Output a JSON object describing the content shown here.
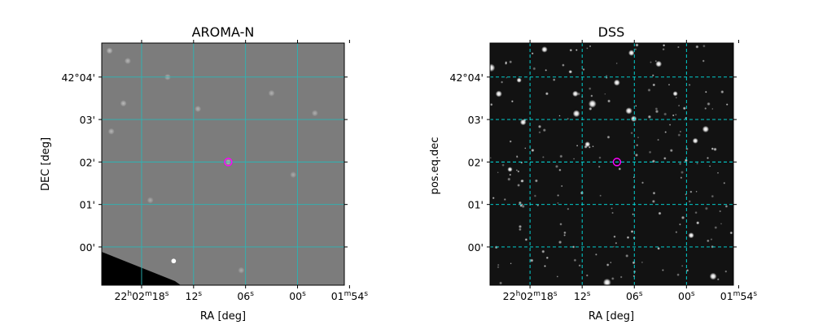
{
  "figure": {
    "background": "#ffffff",
    "grid_color": "#2bb5b5",
    "grid_color_right": "#00e5e5",
    "marker_color": "#ff00ff"
  },
  "chart_data": [
    {
      "type": "image",
      "title": "AROMA-N",
      "xlabel": "RA [deg]",
      "ylabel": "DEC [deg]",
      "grid": true,
      "grid_style": "solid",
      "x_ticks": [
        {
          "ra_sec": 18,
          "label_prefix": "22",
          "label_mid": "02",
          "label_sec": "18",
          "full": true
        },
        {
          "ra_sec": 12,
          "label_sec": "12",
          "full": false
        },
        {
          "ra_sec": 6,
          "label_sec": "06",
          "full": false
        },
        {
          "ra_sec": 0,
          "label_sec": "00",
          "full": false
        },
        {
          "ra_sec": -6,
          "label_mid": "01",
          "label_sec": "54",
          "minute_only": true
        }
      ],
      "y_ticks": [
        {
          "dec_arcmin": 4,
          "label": "42°04'"
        },
        {
          "dec_arcmin": 3,
          "label": "03'"
        },
        {
          "dec_arcmin": 2,
          "label": "02'"
        },
        {
          "dec_arcmin": 1,
          "label": "01'"
        },
        {
          "dec_arcmin": 0,
          "label": "00'"
        }
      ],
      "x_range_sec": [
        22.6,
        -5.4
      ],
      "y_range_arcmin": [
        -0.9,
        4.8
      ],
      "target": {
        "ra_sec": 8.0,
        "dec_arcmin": 2.0
      },
      "image_style": "gray",
      "blobs": [
        {
          "ra_sec": 21.7,
          "dec_arcmin": 4.62,
          "r": 0.1,
          "v": 0.9
        },
        {
          "ra_sec": 19.6,
          "dec_arcmin": 4.38,
          "r": 0.1,
          "v": 0.75
        },
        {
          "ra_sec": 20.1,
          "dec_arcmin": 3.38,
          "r": 0.11,
          "v": 0.8
        },
        {
          "ra_sec": 21.5,
          "dec_arcmin": 2.72,
          "r": 0.11,
          "v": 0.75
        },
        {
          "ra_sec": 15.0,
          "dec_arcmin": 4.0,
          "r": 0.09,
          "v": 0.7
        },
        {
          "ra_sec": 3.0,
          "dec_arcmin": 3.62,
          "r": 0.12,
          "v": 0.7
        },
        {
          "ra_sec": 11.5,
          "dec_arcmin": 3.25,
          "r": 0.09,
          "v": 0.7
        },
        {
          "ra_sec": -2.0,
          "dec_arcmin": 3.15,
          "r": 0.09,
          "v": 0.65
        },
        {
          "ra_sec": 8.0,
          "dec_arcmin": 2.0,
          "r": 0.07,
          "v": 0.85
        },
        {
          "ra_sec": 14.3,
          "dec_arcmin": -0.33,
          "r": 0.22,
          "v": 1.0
        },
        {
          "ra_sec": 6.5,
          "dec_arcmin": -0.55,
          "r": 0.08,
          "v": 0.6
        },
        {
          "ra_sec": 17.0,
          "dec_arcmin": 1.1,
          "r": 0.07,
          "v": 0.6
        },
        {
          "ra_sec": 0.5,
          "dec_arcmin": 1.7,
          "r": 0.07,
          "v": 0.6
        }
      ]
    },
    {
      "type": "image",
      "title": "DSS",
      "xlabel": "RA [deg]",
      "ylabel": "pos.eq.dec",
      "grid": true,
      "grid_style": "dashed",
      "x_ticks": [
        {
          "ra_sec": 18,
          "label_prefix": "22",
          "label_mid": "02",
          "label_sec": "18",
          "full": true
        },
        {
          "ra_sec": 12,
          "label_sec": "12",
          "full": false
        },
        {
          "ra_sec": 6,
          "label_sec": "06",
          "full": false
        },
        {
          "ra_sec": 0,
          "label_sec": "00",
          "full": false
        },
        {
          "ra_sec": -6,
          "label_mid": "01",
          "label_sec": "54",
          "minute_only": true
        }
      ],
      "y_ticks": [
        {
          "dec_arcmin": 4,
          "label": "42°04'"
        },
        {
          "dec_arcmin": 3,
          "label": "03'"
        },
        {
          "dec_arcmin": 2,
          "label": "02'"
        },
        {
          "dec_arcmin": 1,
          "label": "01'"
        },
        {
          "dec_arcmin": 0,
          "label": "00'"
        }
      ],
      "x_range_sec": [
        22.6,
        -5.4
      ],
      "y_range_arcmin": [
        -0.9,
        4.8
      ],
      "target": {
        "ra_sec": 8.0,
        "dec_arcmin": 2.0
      },
      "image_style": "stars"
    }
  ]
}
